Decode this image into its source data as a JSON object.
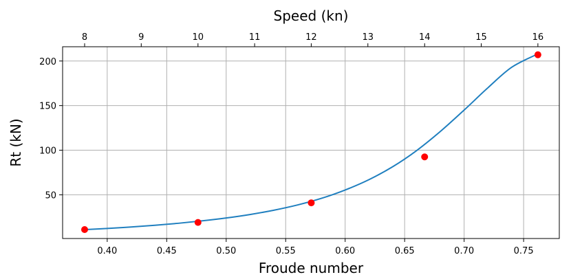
{
  "chart_data": {
    "type": "line",
    "title": "",
    "xlabel": "Froude number",
    "ylabel": "Rt (kN)",
    "top_xlabel": "Speed (kn)",
    "xlim": [
      0.3625,
      0.78
    ],
    "ylim": [
      1,
      216
    ],
    "grid": true,
    "x_ticks": [
      "0.40",
      "0.45",
      "0.50",
      "0.55",
      "0.60",
      "0.65",
      "0.70",
      "0.75"
    ],
    "y_ticks": [
      "50",
      "100",
      "150",
      "200"
    ],
    "top_ticks": [
      {
        "speed": 8,
        "froude": 0.381
      },
      {
        "speed": 9,
        "froude": 0.4286
      },
      {
        "speed": 10,
        "froude": 0.4763
      },
      {
        "speed": 11,
        "froude": 0.5239
      },
      {
        "speed": 12,
        "froude": 0.5715
      },
      {
        "speed": 13,
        "froude": 0.6191
      },
      {
        "speed": 14,
        "froude": 0.6668
      },
      {
        "speed": 15,
        "froude": 0.7144
      },
      {
        "speed": 16,
        "froude": 0.762
      }
    ],
    "series": [
      {
        "kind": "line",
        "color": "#1f7fbf",
        "x": [
          0.381,
          0.4,
          0.42,
          0.44,
          0.46,
          0.48,
          0.5,
          0.52,
          0.54,
          0.56,
          0.58,
          0.6,
          0.62,
          0.64,
          0.66,
          0.68,
          0.7,
          0.72,
          0.74,
          0.762
        ],
        "y": [
          11,
          12.3,
          13.9,
          15.8,
          18.1,
          20.8,
          24,
          27.9,
          32.7,
          38.6,
          46,
          55.4,
          67,
          81.5,
          99.5,
          121,
          145,
          170,
          193,
          208
        ]
      },
      {
        "kind": "scatter",
        "color": "#ff0000",
        "x": [
          0.381,
          0.4763,
          0.5715,
          0.6668,
          0.762
        ],
        "y": [
          11,
          19,
          41,
          92.5,
          207
        ]
      }
    ]
  }
}
